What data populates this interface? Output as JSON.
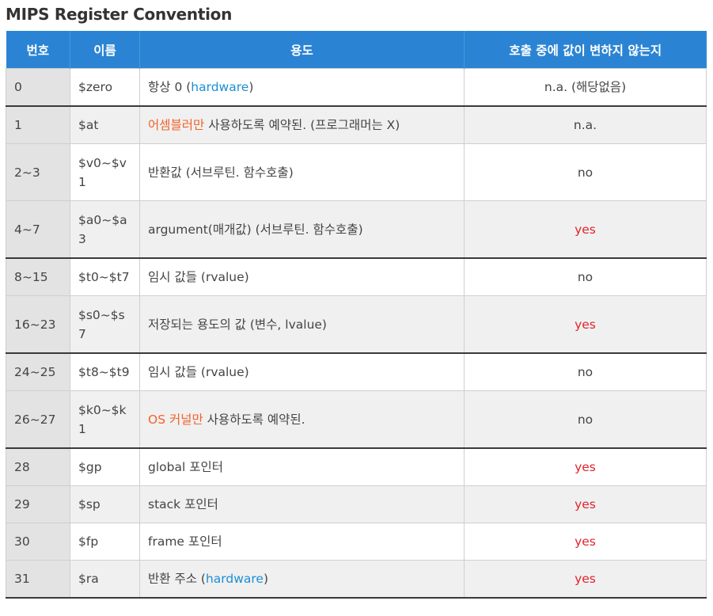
{
  "title": "MIPS Register Convention",
  "headers": [
    "번호",
    "이름",
    "용도",
    "호출 중에 값이 변하지 않는지"
  ],
  "colors": {
    "header_bg": "#2b84d3",
    "link_blue": "#1a8fd6",
    "highlight_orange": "#f0632a",
    "yes_red": "#e0242c"
  },
  "rows": [
    {
      "num": "0",
      "name": "$zero",
      "use_pre": "항상 0 (",
      "use_hl": "hardware",
      "use_post": ")",
      "preserved": "n.a. (해당없음)"
    },
    {
      "num": "1",
      "name": "$at",
      "use_pre": "",
      "use_hl": "어셈블러만",
      "use_post": " 사용하도록 예약된. (프로그래머는 X)",
      "preserved": "n.a."
    },
    {
      "num": "2~3",
      "name": "$v0~$v1",
      "use_pre": "반환값 (서브루틴. 함수호출)",
      "use_hl": "",
      "use_post": "",
      "preserved": "no"
    },
    {
      "num": "4~7",
      "name": "$a0~$a3",
      "use_pre": "argument(매개값) (서브루틴. 함수호출)",
      "use_hl": "",
      "use_post": "",
      "preserved": "yes"
    },
    {
      "num": "8~15",
      "name": "$t0~$t7",
      "use_pre": "임시 값들 (rvalue)",
      "use_hl": "",
      "use_post": "",
      "preserved": "no"
    },
    {
      "num": "16~23",
      "name": "$s0~$s7",
      "use_pre": "저장되는 용도의 값 (변수, lvalue)",
      "use_hl": "",
      "use_post": "",
      "preserved": "yes"
    },
    {
      "num": "24~25",
      "name": "$t8~$t9",
      "use_pre": "임시 값들 (rvalue)",
      "use_hl": "",
      "use_post": "",
      "preserved": "no"
    },
    {
      "num": "26~27",
      "name": "$k0~$k1",
      "use_pre": "",
      "use_hl": "OS 커널만",
      "use_post": " 사용하도록 예약된.",
      "preserved": "no"
    },
    {
      "num": "28",
      "name": "$gp",
      "use_pre": "global 포인터",
      "use_hl": "",
      "use_post": "",
      "preserved": "yes"
    },
    {
      "num": "29",
      "name": "$sp",
      "use_pre": "stack 포인터",
      "use_hl": "",
      "use_post": "",
      "preserved": "yes"
    },
    {
      "num": "30",
      "name": "$fp",
      "use_pre": "frame 포인터",
      "use_hl": "",
      "use_post": "",
      "preserved": "yes"
    },
    {
      "num": "31",
      "name": "$ra",
      "use_pre": "반환 주소 (",
      "use_hl": "hardware",
      "use_post": ")",
      "preserved": "yes"
    }
  ]
}
